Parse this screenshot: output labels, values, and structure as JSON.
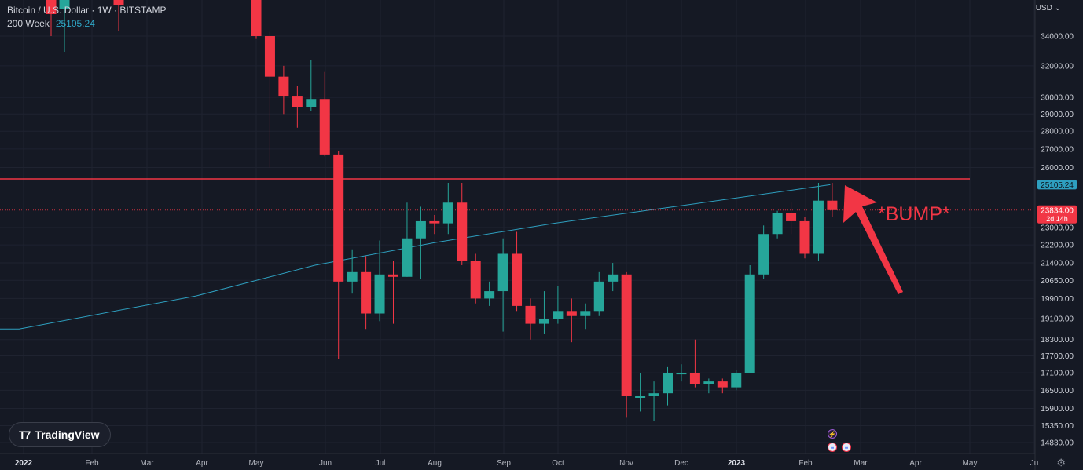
{
  "legend": {
    "symbol": "Bitcoin / U.S. Dollar · 1W · BITSTAMP",
    "indicator_name": "200 Week",
    "indicator_value": "25105.24"
  },
  "currency_label": "USD",
  "brand": "TradingView",
  "annotation": "*BUMP*",
  "colors": {
    "background": "#151924",
    "up": "#26a69a",
    "down": "#f23645",
    "ma": "#2e9fbf",
    "resistance": "#f23645",
    "text": "#d1d4dc"
  },
  "chart_data": {
    "type": "candlestick",
    "scale": "log",
    "y_ticks": [
      34000,
      32000,
      30000,
      29000,
      28000,
      27000,
      26000,
      25105.24,
      23834,
      23000,
      22200,
      21400,
      20650,
      19900,
      19100,
      18300,
      17700,
      17100,
      16500,
      15900,
      15350,
      14830
    ],
    "y_tick_labels": [
      "34000.00",
      "32000.00",
      "30000.00",
      "29000.00",
      "28000.00",
      "27000.00",
      "26000.00",
      "23000.00",
      "22200.00",
      "21400.00",
      "20650.00",
      "19900.00",
      "19100.00",
      "18300.00",
      "17700.00",
      "17100.00",
      "16500.00",
      "15900.00",
      "15350.00",
      "14830.00"
    ],
    "x_labels": [
      "2022",
      "Feb",
      "Mar",
      "Apr",
      "May",
      "Jun",
      "Jul",
      "Aug",
      "Sep",
      "Oct",
      "Nov",
      "Dec",
      "2023",
      "Feb",
      "Mar",
      "Apr",
      "May",
      "Ju"
    ],
    "price_labels": [
      {
        "value": 25105.24,
        "text": "25105.24",
        "kind": "ma"
      },
      {
        "value": 23834,
        "text": "23834.00",
        "sub": "2d 14h",
        "kind": "last"
      }
    ],
    "resistance_level": 25400,
    "last_price": 23834,
    "ma_series": {
      "name": "200 Week",
      "points": [
        [
          "2022-01-01",
          18700
        ],
        [
          "2022-04-01",
          20000
        ],
        [
          "2022-06-01",
          21300
        ],
        [
          "2022-08-01",
          22300
        ],
        [
          "2022-10-01",
          23200
        ],
        [
          "2022-12-01",
          24000
        ],
        [
          "2023-02-19",
          25105
        ]
      ]
    },
    "candles": [
      {
        "t": "2022-05-02",
        "o": 38500,
        "h": 38800,
        "l": 33800,
        "c": 34000
      },
      {
        "t": "2022-05-09",
        "o": 34000,
        "h": 34300,
        "l": 26000,
        "c": 31300
      },
      {
        "t": "2022-05-16",
        "o": 31300,
        "h": 32000,
        "l": 29000,
        "c": 30100
      },
      {
        "t": "2022-05-23",
        "o": 30100,
        "h": 30700,
        "l": 28200,
        "c": 29400
      },
      {
        "t": "2022-05-30",
        "o": 29400,
        "h": 32400,
        "l": 29200,
        "c": 29900
      },
      {
        "t": "2022-06-06",
        "o": 29900,
        "h": 31600,
        "l": 26600,
        "c": 26700
      },
      {
        "t": "2022-06-13",
        "o": 26700,
        "h": 26900,
        "l": 17600,
        "c": 20600
      },
      {
        "t": "2022-06-20",
        "o": 20600,
        "h": 22000,
        "l": 20100,
        "c": 21000
      },
      {
        "t": "2022-06-27",
        "o": 21000,
        "h": 21700,
        "l": 18700,
        "c": 19300
      },
      {
        "t": "2022-07-04",
        "o": 19300,
        "h": 22400,
        "l": 19000,
        "c": 20900
      },
      {
        "t": "2022-07-11",
        "o": 20900,
        "h": 21500,
        "l": 18900,
        "c": 20800
      },
      {
        "t": "2022-07-18",
        "o": 20800,
        "h": 24200,
        "l": 20800,
        "c": 22500
      },
      {
        "t": "2022-07-25",
        "o": 22500,
        "h": 24000,
        "l": 20700,
        "c": 23300
      },
      {
        "t": "2022-08-01",
        "o": 23300,
        "h": 23600,
        "l": 22700,
        "c": 23200
      },
      {
        "t": "2022-08-08",
        "o": 23200,
        "h": 25200,
        "l": 22700,
        "c": 24200
      },
      {
        "t": "2022-08-15",
        "o": 24200,
        "h": 25200,
        "l": 21300,
        "c": 21500
      },
      {
        "t": "2022-08-22",
        "o": 21500,
        "h": 21800,
        "l": 19700,
        "c": 19900
      },
      {
        "t": "2022-08-29",
        "o": 19900,
        "h": 20600,
        "l": 19600,
        "c": 20200
      },
      {
        "t": "2022-09-05",
        "o": 20200,
        "h": 22500,
        "l": 18600,
        "c": 21800
      },
      {
        "t": "2022-09-12",
        "o": 21800,
        "h": 22800,
        "l": 19400,
        "c": 19600
      },
      {
        "t": "2022-09-19",
        "o": 19600,
        "h": 19900,
        "l": 18300,
        "c": 18900
      },
      {
        "t": "2022-09-26",
        "o": 18900,
        "h": 20200,
        "l": 18500,
        "c": 19100
      },
      {
        "t": "2022-10-03",
        "o": 19100,
        "h": 20400,
        "l": 18900,
        "c": 19400
      },
      {
        "t": "2022-10-10",
        "o": 19400,
        "h": 19900,
        "l": 18200,
        "c": 19200
      },
      {
        "t": "2022-10-17",
        "o": 19200,
        "h": 19700,
        "l": 18700,
        "c": 19400
      },
      {
        "t": "2022-10-24",
        "o": 19400,
        "h": 21000,
        "l": 19200,
        "c": 20600
      },
      {
        "t": "2022-10-31",
        "o": 20600,
        "h": 21400,
        "l": 20200,
        "c": 20900
      },
      {
        "t": "2022-11-07",
        "o": 20900,
        "h": 21000,
        "l": 15600,
        "c": 16300
      },
      {
        "t": "2022-11-14",
        "o": 16300,
        "h": 17100,
        "l": 15800,
        "c": 16300
      },
      {
        "t": "2022-11-21",
        "o": 16300,
        "h": 16800,
        "l": 15500,
        "c": 16400
      },
      {
        "t": "2022-11-28",
        "o": 16400,
        "h": 17300,
        "l": 16000,
        "c": 17100
      },
      {
        "t": "2022-12-05",
        "o": 17100,
        "h": 17400,
        "l": 16800,
        "c": 17100
      },
      {
        "t": "2022-12-12",
        "o": 17100,
        "h": 18300,
        "l": 16600,
        "c": 16700
      },
      {
        "t": "2022-12-19",
        "o": 16700,
        "h": 16900,
        "l": 16400,
        "c": 16800
      },
      {
        "t": "2022-12-26",
        "o": 16800,
        "h": 16900,
        "l": 16400,
        "c": 16600
      },
      {
        "t": "2023-01-02",
        "o": 16600,
        "h": 17200,
        "l": 16500,
        "c": 17100
      },
      {
        "t": "2023-01-09",
        "o": 17100,
        "h": 21300,
        "l": 17100,
        "c": 20900
      },
      {
        "t": "2023-01-16",
        "o": 20900,
        "h": 23100,
        "l": 20700,
        "c": 22700
      },
      {
        "t": "2023-01-23",
        "o": 22700,
        "h": 23800,
        "l": 22500,
        "c": 23700
      },
      {
        "t": "2023-01-30",
        "o": 23700,
        "h": 24200,
        "l": 22700,
        "c": 23300
      },
      {
        "t": "2023-02-06",
        "o": 23300,
        "h": 23500,
        "l": 21600,
        "c": 21800
      },
      {
        "t": "2023-02-13",
        "o": 21800,
        "h": 25200,
        "l": 21500,
        "c": 24300
      },
      {
        "t": "2023-02-20",
        "o": 24300,
        "h": 25200,
        "l": 23500,
        "c": 23834
      }
    ]
  }
}
